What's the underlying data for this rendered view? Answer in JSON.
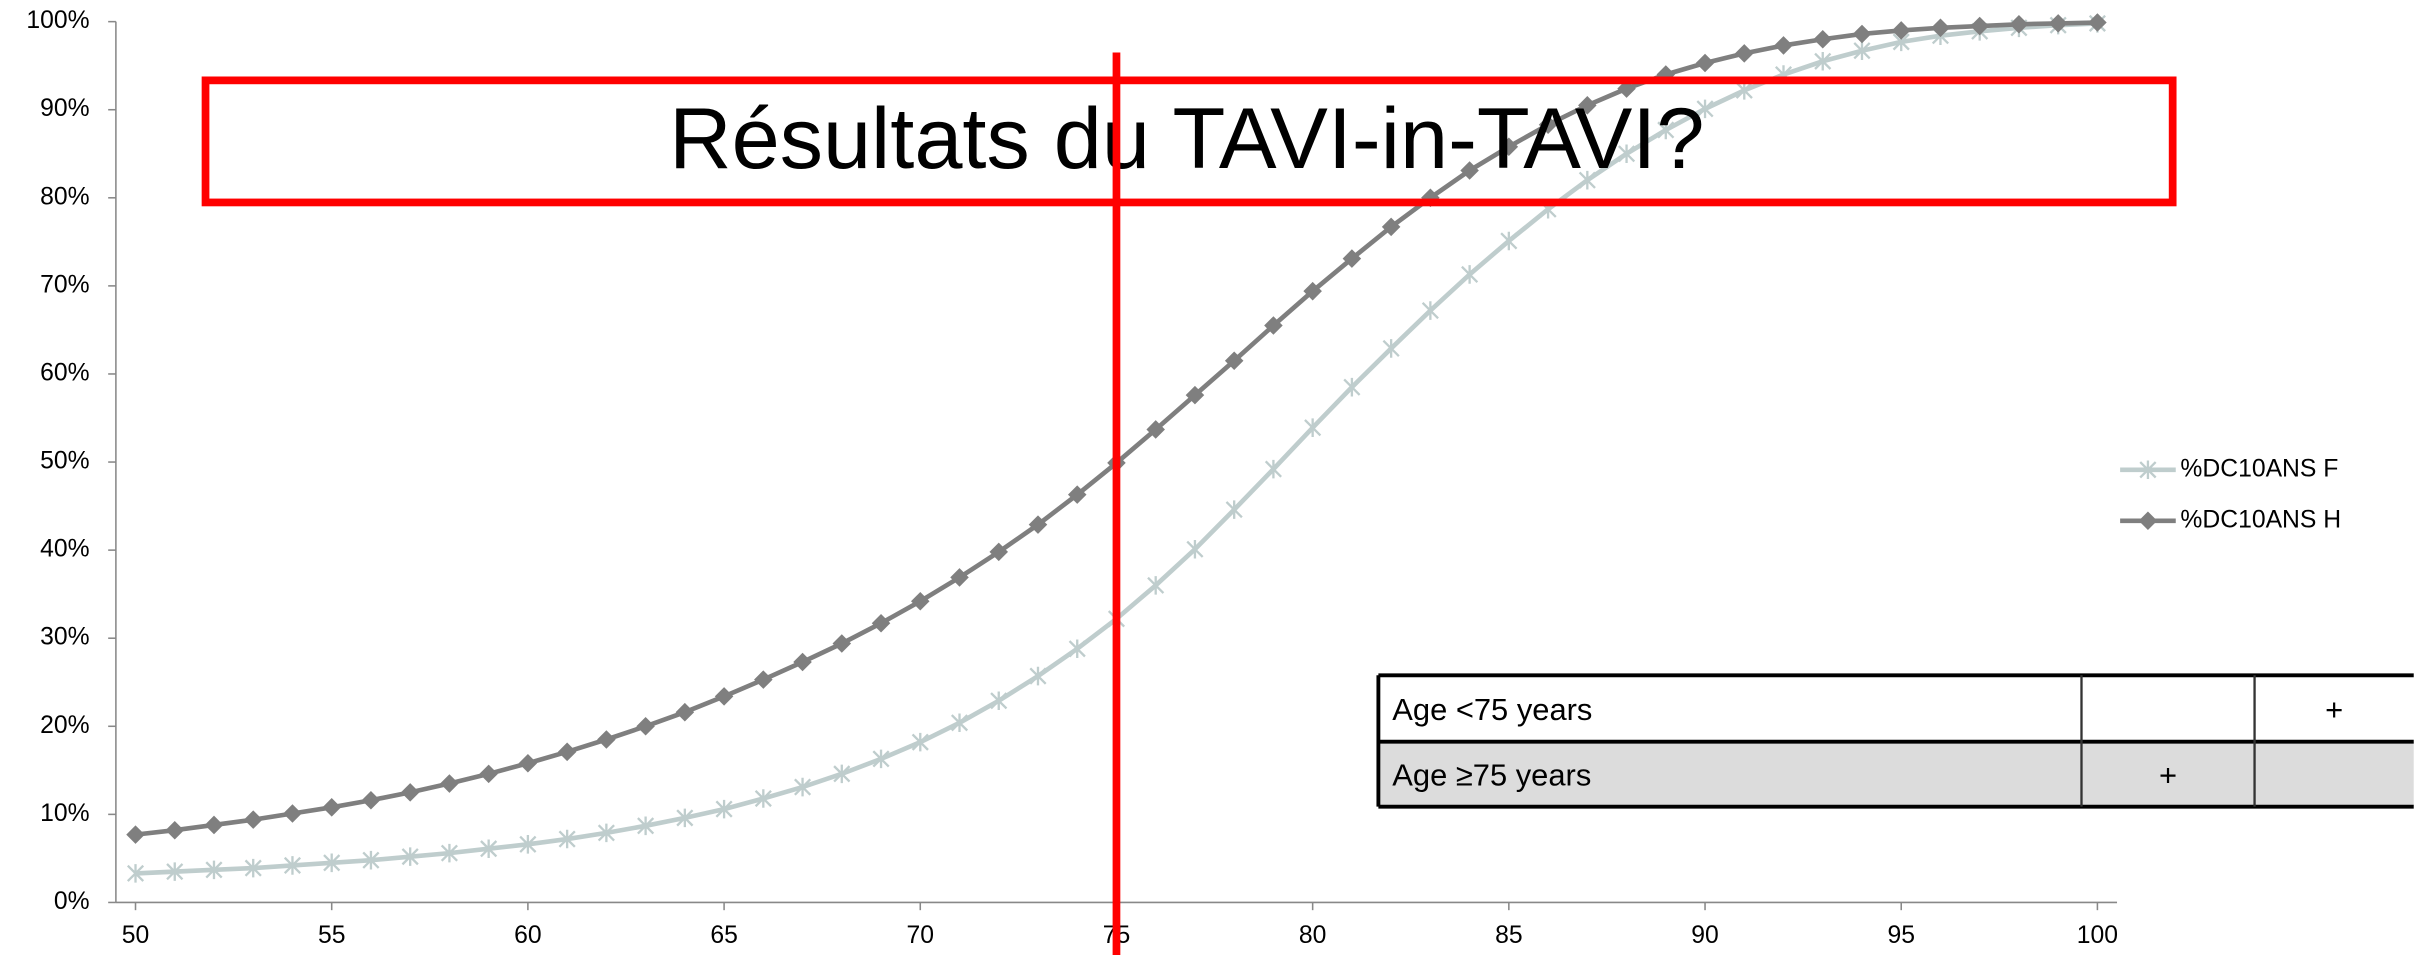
{
  "chart_data": {
    "type": "line",
    "title": "Résultats du TAVI-in-TAVI?",
    "x": [
      50,
      51,
      52,
      53,
      54,
      55,
      56,
      57,
      58,
      59,
      60,
      61,
      62,
      63,
      64,
      65,
      66,
      67,
      68,
      69,
      70,
      71,
      72,
      73,
      74,
      75,
      76,
      77,
      78,
      79,
      80,
      81,
      82,
      83,
      84,
      85,
      86,
      87,
      88,
      89,
      90,
      91,
      92,
      93,
      94,
      95,
      96,
      97,
      98,
      99,
      100
    ],
    "series": [
      {
        "name": "%DC10ANS F",
        "color": "#bfcdcd",
        "marker": "x",
        "values": [
          3.3,
          3.5,
          3.7,
          3.9,
          4.2,
          4.5,
          4.8,
          5.2,
          5.6,
          6.1,
          6.6,
          7.2,
          7.9,
          8.7,
          9.6,
          10.6,
          11.8,
          13.1,
          14.6,
          16.3,
          18.2,
          20.4,
          22.9,
          25.7,
          28.8,
          32.2,
          36.0,
          40.1,
          44.6,
          49.2,
          53.9,
          58.5,
          62.9,
          67.2,
          71.3,
          75.1,
          78.7,
          82.0,
          85.0,
          87.7,
          90.1,
          92.2,
          94.0,
          95.5,
          96.7,
          97.7,
          98.4,
          98.9,
          99.3,
          99.6,
          99.8
        ]
      },
      {
        "name": "%DC10ANS H",
        "color": "#7f7f7f",
        "marker": "diamond",
        "values": [
          7.7,
          8.2,
          8.8,
          9.4,
          10.1,
          10.8,
          11.6,
          12.5,
          13.5,
          14.6,
          15.8,
          17.1,
          18.5,
          20.0,
          21.6,
          23.4,
          25.3,
          27.3,
          29.4,
          31.7,
          34.2,
          36.9,
          39.8,
          42.9,
          46.3,
          49.9,
          53.7,
          57.6,
          61.5,
          65.5,
          69.4,
          73.1,
          76.7,
          80.0,
          83.1,
          85.8,
          88.3,
          90.5,
          92.4,
          94.0,
          95.3,
          96.4,
          97.3,
          98.0,
          98.6,
          99.0,
          99.3,
          99.5,
          99.7,
          99.8,
          99.9
        ]
      }
    ],
    "xlim": [
      49.5,
      100.5
    ],
    "xticks": [
      50,
      55,
      60,
      65,
      70,
      75,
      80,
      85,
      90,
      95,
      100
    ],
    "ylim": [
      0,
      100
    ],
    "yticks": [
      {
        "value": 0,
        "label": "0%"
      },
      {
        "value": 10,
        "label": "10%"
      },
      {
        "value": 20,
        "label": "20%"
      },
      {
        "value": 30,
        "label": "30%"
      },
      {
        "value": 40,
        "label": "40%"
      },
      {
        "value": 50,
        "label": "50%"
      },
      {
        "value": 60,
        "label": "60%"
      },
      {
        "value": 70,
        "label": "70%"
      },
      {
        "value": 80,
        "label": "80%"
      },
      {
        "value": 90,
        "label": "90%"
      },
      {
        "value": 100,
        "label": "100%"
      }
    ],
    "grid": false,
    "legend": "right",
    "vline": {
      "value": 75,
      "color": "#ff0000"
    },
    "table": {
      "rows": [
        [
          "Age <75 years",
          null,
          "+"
        ],
        [
          "Age ≥75 years",
          "+",
          null
        ]
      ]
    }
  }
}
